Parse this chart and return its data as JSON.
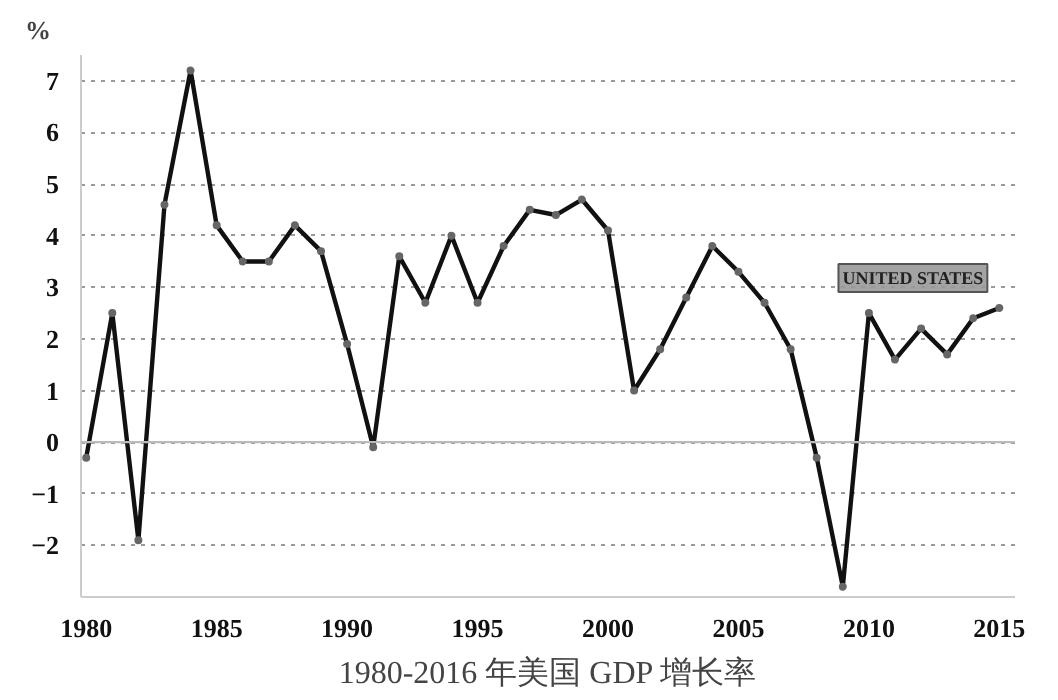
{
  "chart_data": {
    "type": "line",
    "title": "1980-2016 年美国 GDP 增长率",
    "ylabel": "%",
    "x": [
      1980,
      1981,
      1982,
      1983,
      1984,
      1985,
      1986,
      1987,
      1988,
      1989,
      1990,
      1991,
      1992,
      1993,
      1994,
      1995,
      1996,
      1997,
      1998,
      1999,
      2000,
      2001,
      2002,
      2003,
      2004,
      2005,
      2006,
      2007,
      2008,
      2009,
      2010,
      2011,
      2012,
      2013,
      2014,
      2015
    ],
    "series": [
      {
        "name": "UNITED STATES",
        "color": "#111111",
        "values": [
          -0.3,
          2.5,
          -1.9,
          4.6,
          7.2,
          4.2,
          3.5,
          3.5,
          4.2,
          3.7,
          1.9,
          -0.1,
          3.6,
          2.7,
          4.0,
          2.7,
          3.8,
          4.5,
          4.4,
          4.7,
          4.1,
          1.0,
          1.8,
          2.8,
          3.8,
          3.3,
          2.7,
          1.8,
          -0.3,
          -2.8,
          2.5,
          1.6,
          2.2,
          1.7,
          2.4,
          2.6
        ]
      }
    ],
    "xlim": [
      1979.8,
      2015.6
    ],
    "xticks": [
      1980,
      1985,
      1990,
      1995,
      2000,
      2005,
      2010,
      2015
    ],
    "ylim": [
      -3,
      7.5
    ],
    "yticks": [
      -2,
      -1,
      0,
      1,
      2,
      3,
      4,
      5,
      6,
      7
    ],
    "ref_lines": [
      {
        "axis": "y",
        "value": 0,
        "color": "#bbbbbb",
        "line_style": "solid"
      }
    ],
    "grid": "y",
    "marker": "circle",
    "line_style": "solid"
  }
}
